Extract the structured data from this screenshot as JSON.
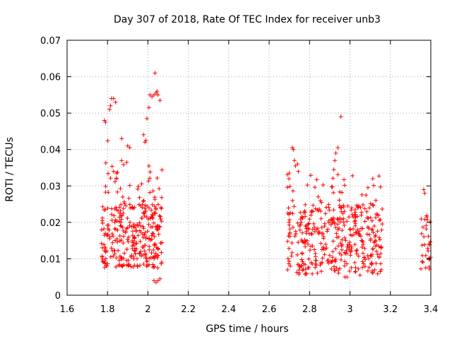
{
  "chart_data": {
    "type": "scatter",
    "title": "Day 307 of 2018, Rate Of TEC Index for receiver unb3",
    "xlabel": "GPS time / hours",
    "ylabel": "ROTI / TECUs",
    "xlim": [
      1.6,
      3.4
    ],
    "ylim": [
      0,
      0.07
    ],
    "xticks": [
      1.6,
      1.8,
      2.0,
      2.2,
      2.4,
      2.6,
      2.8,
      3.0,
      3.2,
      3.4
    ],
    "xtick_labels": [
      "1.6",
      "1.8",
      "2",
      "2.2",
      "2.4",
      "2.6",
      "2.8",
      "3",
      "3.2",
      "3.4"
    ],
    "yticks": [
      0,
      0.01,
      0.02,
      0.03,
      0.04,
      0.05,
      0.06,
      0.07
    ],
    "ytick_labels": [
      "0",
      "0.01",
      "0.02",
      "0.03",
      "0.04",
      "0.05",
      "0.06",
      "0.07"
    ],
    "grid": true,
    "marker": "plus",
    "series_color": "#ff0000",
    "series": [
      {
        "name": "ROTI",
        "clusters": [
          {
            "x_range": [
              1.77,
              2.07
            ],
            "y_range": [
              0.0075,
              0.025
            ],
            "count": 300
          },
          {
            "x_range": [
              1.77,
              2.07
            ],
            "y_range": [
              0.025,
              0.035
            ],
            "count": 35
          },
          {
            "x_range": [
              1.77,
              2.07
            ],
            "y_range": [
              0.035,
              0.045
            ],
            "count": 8
          },
          {
            "x_range": [
              2.69,
              3.16
            ],
            "y_range": [
              0.0055,
              0.025
            ],
            "count": 380
          },
          {
            "x_range": [
              2.69,
              3.16
            ],
            "y_range": [
              0.025,
              0.034
            ],
            "count": 35
          },
          {
            "x_range": [
              3.35,
              3.4
            ],
            "y_range": [
              0.007,
              0.022
            ],
            "count": 30
          }
        ],
        "points": [
          [
            1.785,
            0.048
          ],
          [
            1.79,
            0.0475
          ],
          [
            1.81,
            0.051
          ],
          [
            1.815,
            0.052
          ],
          [
            1.82,
            0.054
          ],
          [
            1.83,
            0.054
          ],
          [
            1.84,
            0.053
          ],
          [
            1.87,
            0.043
          ],
          [
            1.9,
            0.041
          ],
          [
            1.91,
            0.0405
          ],
          [
            1.985,
            0.042
          ],
          [
            1.99,
            0.0425
          ],
          [
            1.995,
            0.0485
          ],
          [
            2.005,
            0.0515
          ],
          [
            2.01,
            0.055
          ],
          [
            2.02,
            0.0545
          ],
          [
            2.03,
            0.055
          ],
          [
            2.04,
            0.0555
          ],
          [
            2.045,
            0.056
          ],
          [
            2.05,
            0.055
          ],
          [
            2.06,
            0.0535
          ],
          [
            2.035,
            0.061
          ],
          [
            2.03,
            0.004
          ],
          [
            2.04,
            0.0035
          ],
          [
            2.05,
            0.004
          ],
          [
            2.06,
            0.0045
          ],
          [
            2.715,
            0.0405
          ],
          [
            2.72,
            0.04
          ],
          [
            2.725,
            0.037
          ],
          [
            2.73,
            0.0355
          ],
          [
            2.74,
            0.036
          ],
          [
            2.745,
            0.034
          ],
          [
            2.94,
            0.0405
          ],
          [
            2.93,
            0.039
          ],
          [
            2.925,
            0.037
          ],
          [
            2.92,
            0.0345
          ],
          [
            2.955,
            0.049
          ],
          [
            2.975,
            0.005
          ],
          [
            2.985,
            0.005
          ],
          [
            3.15,
            0.0065
          ],
          [
            3.155,
            0.007
          ],
          [
            3.365,
            0.029
          ],
          [
            3.37,
            0.028
          ],
          [
            3.375,
            0.0075
          ]
        ]
      }
    ]
  }
}
